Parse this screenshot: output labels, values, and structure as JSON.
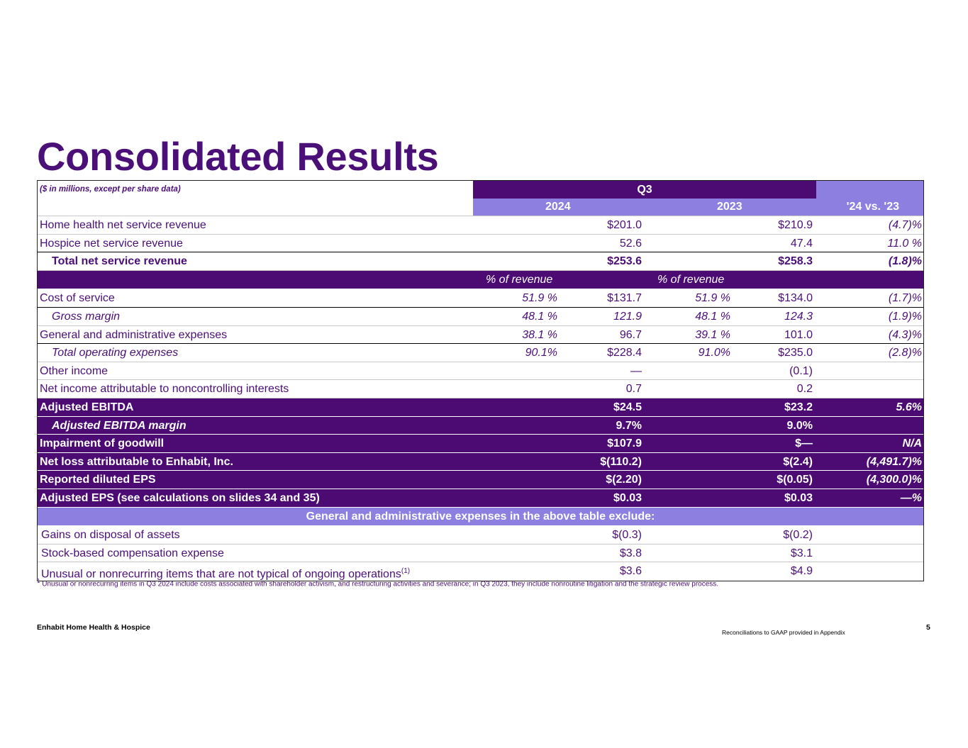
{
  "title": "Consolidated Results",
  "table": {
    "units_note": "($ in millions, except per share data)",
    "period_header": "Q3",
    "col_2024": "2024",
    "col_2023": "2023",
    "col_change": "'24 vs. '23",
    "pct_header_2024": "% of revenue",
    "pct_header_2023": "% of revenue",
    "revenue_rows": [
      {
        "label": "Home health net service revenue",
        "v2024": "$201.0",
        "v2023": "$210.9",
        "chg": "(4.7)%"
      },
      {
        "label": "Hospice net service revenue",
        "v2024": "52.6",
        "v2023": "47.4",
        "chg": "11.0 %"
      },
      {
        "label": "Total net service revenue",
        "v2024": "$253.6",
        "v2023": "$258.3",
        "chg": "(1.8)%"
      }
    ],
    "expense_rows": [
      {
        "label": "Cost of service",
        "p2024": "51.9 %",
        "v2024": "$131.7",
        "p2023": "51.9 %",
        "v2023": "$134.0",
        "chg": "(1.7)%"
      },
      {
        "label": "Gross margin",
        "p2024": "48.1 %",
        "v2024": "121.9",
        "p2023": "48.1 %",
        "v2023": "124.3",
        "chg": "(1.9)%"
      },
      {
        "label": "General and administrative expenses",
        "p2024": "38.1 %",
        "v2024": "96.7",
        "p2023": "39.1 %",
        "v2023": "101.0",
        "chg": "(4.3)%"
      },
      {
        "label": "Total operating expenses",
        "p2024": "90.1%",
        "v2024": "$228.4",
        "p2023": "91.0%",
        "v2023": "$235.0",
        "chg": "(2.8)%"
      },
      {
        "label": "Other income",
        "v2024": "—",
        "v2023": "(0.1)",
        "chg": ""
      },
      {
        "label": "Net income attributable to noncontrolling interests",
        "v2024": "0.7",
        "v2023": "0.2",
        "chg": ""
      }
    ],
    "highlight_rows": [
      {
        "label": "Adjusted EBITDA",
        "v2024": "$24.5",
        "v2023": "$23.2",
        "chg": "5.6%"
      },
      {
        "label": "Adjusted EBITDA margin",
        "v2024": "9.7%",
        "v2023": "9.0%",
        "chg": ""
      },
      {
        "label": "Impairment of goodwill",
        "v2024": "$107.9",
        "v2023": "$—",
        "chg": "N/A"
      },
      {
        "label": "Net loss attributable to Enhabit, Inc.",
        "v2024": "$(110.2)",
        "v2023": "$(2.4)",
        "chg": "(4,491.7)%"
      },
      {
        "label": "Reported diluted EPS",
        "v2024": "$(2.20)",
        "v2023": "$(0.05)",
        "chg": "(4,300.0)%"
      },
      {
        "label": "Adjusted EPS (see calculations on slides 34 and 35)",
        "v2024": "$0.03",
        "v2023": "$0.03",
        "chg": "—%"
      }
    ],
    "exclusions_header": "General and administrative expenses in the above table exclude:",
    "exclusion_rows": [
      {
        "label": "Gains on disposal of assets",
        "v2024": "$(0.3)",
        "v2023": "$(0.2)"
      },
      {
        "label": "Stock-based compensation expense",
        "v2024": "$3.8",
        "v2023": "$3.1"
      },
      {
        "label": "Unusual or nonrecurring items that are not typical of ongoing operations",
        "sup": "(1)",
        "v2024": "$3.6",
        "v2023": "$4.9"
      }
    ]
  },
  "footnote": {
    "marker": "1",
    "text": "Unusual or nonrecurring items in Q3 2024 include costs associated with shareholder activism, and restructuring activities and severance; in Q3 2023, they include nonroutine litigation and the strategic review process."
  },
  "footer": {
    "company": "Enhabit Home Health & Hospice",
    "note": "Reconciliations to GAAP provided in Appendix",
    "page_number": "5"
  },
  "colors": {
    "brand_purple": "#4b0b73",
    "accent_lavender": "#8c7fe0"
  }
}
